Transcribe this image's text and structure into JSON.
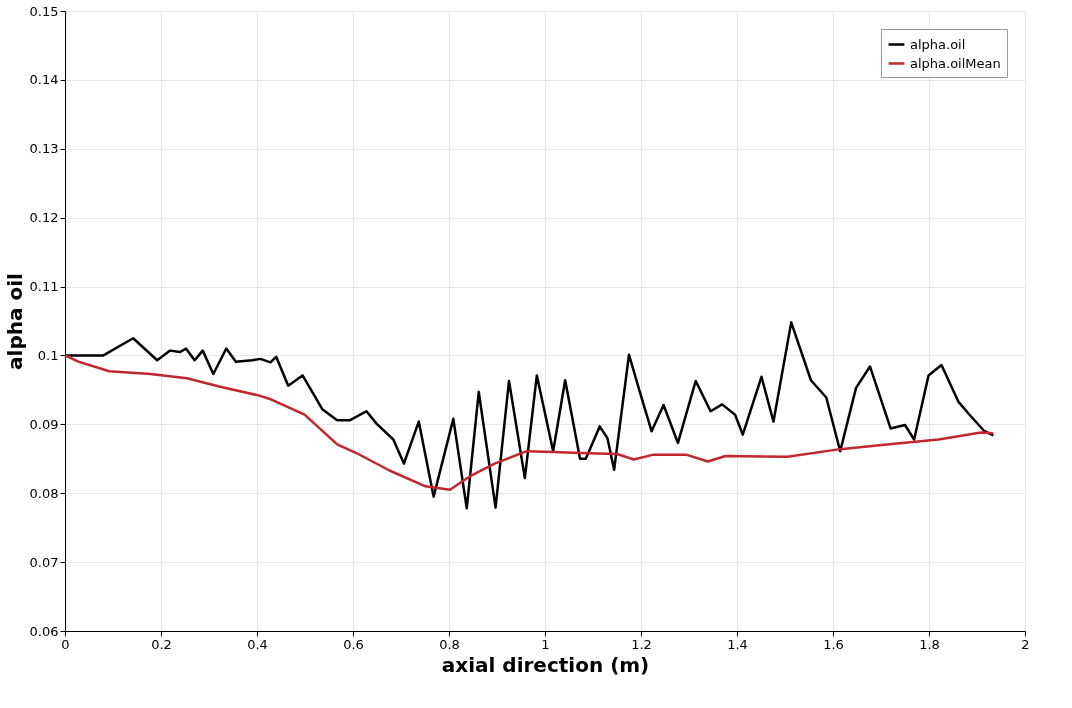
{
  "chart_data": {
    "type": "line",
    "xlabel": "axial direction (m)",
    "ylabel": "alpha oil",
    "xlim": [
      0,
      2
    ],
    "xticks": [
      0,
      0.2,
      0.4,
      0.6,
      0.8,
      1,
      1.2,
      1.4,
      1.6,
      1.8,
      2
    ],
    "ylim": [
      0.06,
      0.15
    ],
    "yticks": [
      0.06,
      0.07,
      0.08,
      0.09,
      0.1,
      0.11,
      0.12,
      0.13,
      0.14,
      0.15
    ],
    "grid": true,
    "legend": "top right",
    "line_style": "solid",
    "series": [
      {
        "name": "alpha.oil",
        "color": "#000000",
        "x": [
          0,
          0.08,
          0.142,
          0.192,
          0.219,
          0.24,
          0.252,
          0.27,
          0.287,
          0.309,
          0.336,
          0.356,
          0.39,
          0.407,
          0.428,
          0.44,
          0.465,
          0.495,
          0.536,
          0.567,
          0.594,
          0.628,
          0.649,
          0.684,
          0.706,
          0.737,
          0.768,
          0.809,
          0.837,
          0.862,
          0.897,
          0.925,
          0.958,
          0.983,
          1.017,
          1.042,
          1.073,
          1.085,
          1.114,
          1.13,
          1.144,
          1.175,
          1.198,
          1.222,
          1.247,
          1.277,
          1.314,
          1.345,
          1.369,
          1.396,
          1.412,
          1.451,
          1.476,
          1.513,
          1.554,
          1.586,
          1.615,
          1.648,
          1.677,
          1.72,
          1.75,
          1.769,
          1.799,
          1.826,
          1.861,
          1.883,
          1.914,
          1.934
        ],
        "values": [
          0.1,
          0.1,
          0.1025,
          0.0993,
          0.1007,
          0.1005,
          0.101,
          0.0993,
          0.1007,
          0.0973,
          0.101,
          0.0991,
          0.0993,
          0.0995,
          0.099,
          0.0998,
          0.0956,
          0.0971,
          0.0922,
          0.0906,
          0.0906,
          0.0919,
          0.0901,
          0.0878,
          0.0843,
          0.0904,
          0.0795,
          0.0908,
          0.0778,
          0.0947,
          0.0779,
          0.0963,
          0.0822,
          0.0971,
          0.0861,
          0.0964,
          0.085,
          0.085,
          0.0897,
          0.088,
          0.0834,
          0.1001,
          0.0946,
          0.089,
          0.0928,
          0.0873,
          0.0963,
          0.0919,
          0.0929,
          0.0914,
          0.0885,
          0.0969,
          0.0904,
          0.1048,
          0.0964,
          0.0939,
          0.0861,
          0.0953,
          0.0984,
          0.0894,
          0.0899,
          0.0878,
          0.0971,
          0.0986,
          0.0933,
          0.0915,
          0.0891,
          0.0884
        ]
      },
      {
        "name": "alpha.oilMean",
        "color": "#c1272d",
        "x": [
          0,
          0.028,
          0.092,
          0.178,
          0.254,
          0.321,
          0.403,
          0.43,
          0.499,
          0.567,
          0.608,
          0.676,
          0.751,
          0.802,
          0.847,
          0.895,
          0.962,
          1.017,
          1.089,
          1.15,
          1.185,
          1.226,
          1.294,
          1.339,
          1.376,
          1.505,
          1.615,
          1.717,
          1.82,
          1.908,
          1.934
        ],
        "values": [
          0.1,
          0.0991,
          0.0977,
          0.0973,
          0.0967,
          0.0955,
          0.0942,
          0.0936,
          0.0914,
          0.0871,
          0.0858,
          0.0833,
          0.081,
          0.0805,
          0.0826,
          0.0843,
          0.0861,
          0.086,
          0.0858,
          0.0857,
          0.0849,
          0.0856,
          0.0856,
          0.0846,
          0.0854,
          0.0853,
          0.0864,
          0.0871,
          0.0878,
          0.0888,
          0.0887
        ]
      }
    ]
  }
}
